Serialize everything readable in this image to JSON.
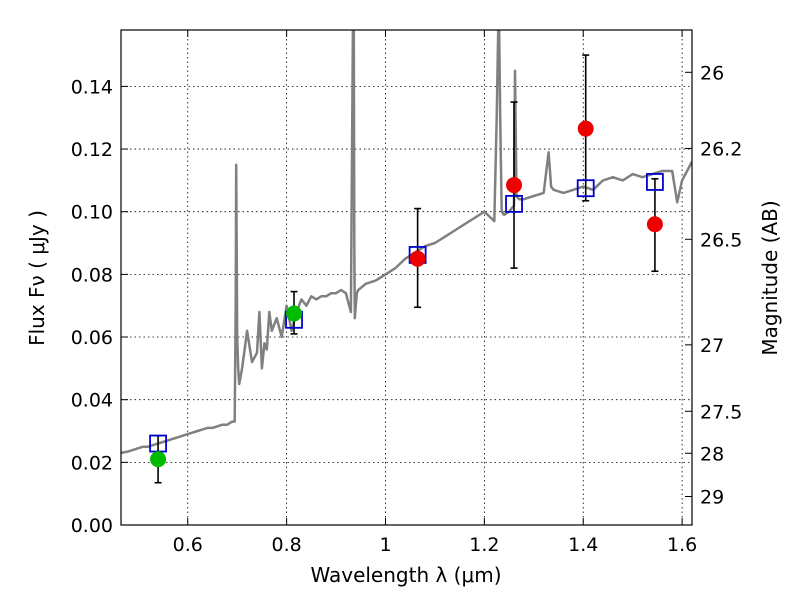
{
  "chart_data": {
    "type": "scatter",
    "xlabel": "Wavelength  λ (μm)",
    "ylabel": "Flux  Fν  ( μJy )",
    "ylabel_right": "Magnitude (AB)",
    "xlim": [
      0.465,
      1.62
    ],
    "ylim": [
      0.0,
      0.158
    ],
    "xticks": [
      0.6,
      0.8,
      1.0,
      1.2,
      1.4,
      1.6
    ],
    "xtick_labels": [
      "0.6",
      "0.8",
      "1",
      "1.2",
      "1.4",
      "1.6"
    ],
    "yticks": [
      0.0,
      0.02,
      0.04,
      0.06,
      0.08,
      0.1,
      0.12,
      0.14
    ],
    "ytick_labels": [
      "0.00",
      "0.02",
      "0.04",
      "0.06",
      "0.08",
      "0.10",
      "0.12",
      "0.14"
    ],
    "right_ticks": [
      {
        "label": "26",
        "flux": 0.1445
      },
      {
        "label": "26.2",
        "flux": 0.1202
      },
      {
        "label": "26.5",
        "flux": 0.0912
      },
      {
        "label": "27",
        "flux": 0.0575
      },
      {
        "label": "27.5",
        "flux": 0.0363
      },
      {
        "label": "28",
        "flux": 0.0229
      },
      {
        "label": "29",
        "flux": 0.0091
      }
    ],
    "grid": true,
    "series": [
      {
        "name": "model spectrum",
        "kind": "line",
        "color": "#808080",
        "x": [
          0.465,
          0.48,
          0.49,
          0.5,
          0.51,
          0.52,
          0.53,
          0.54,
          0.55,
          0.56,
          0.57,
          0.58,
          0.59,
          0.6,
          0.61,
          0.62,
          0.63,
          0.64,
          0.65,
          0.66,
          0.67,
          0.68,
          0.69,
          0.695,
          0.697,
          0.698,
          0.7,
          0.702,
          0.704,
          0.71,
          0.72,
          0.73,
          0.74,
          0.745,
          0.75,
          0.755,
          0.76,
          0.765,
          0.77,
          0.78,
          0.79,
          0.8,
          0.81,
          0.82,
          0.83,
          0.84,
          0.85,
          0.86,
          0.87,
          0.88,
          0.89,
          0.9,
          0.91,
          0.92,
          0.93,
          0.934,
          0.936,
          0.937,
          0.938,
          0.94,
          0.942,
          0.945,
          0.96,
          0.98,
          1.0,
          1.02,
          1.04,
          1.06,
          1.08,
          1.1,
          1.12,
          1.14,
          1.16,
          1.18,
          1.2,
          1.22,
          1.225,
          1.228,
          1.23,
          1.232,
          1.235,
          1.24,
          1.25,
          1.26,
          1.262,
          1.265,
          1.27,
          1.28,
          1.3,
          1.32,
          1.33,
          1.335,
          1.34,
          1.36,
          1.38,
          1.4,
          1.42,
          1.44,
          1.46,
          1.48,
          1.5,
          1.52,
          1.54,
          1.56,
          1.58,
          1.59,
          1.6,
          1.61,
          1.62
        ],
        "y": [
          0.023,
          0.0235,
          0.024,
          0.0245,
          0.025,
          0.025,
          0.0255,
          0.026,
          0.0265,
          0.027,
          0.0275,
          0.028,
          0.0285,
          0.029,
          0.0295,
          0.03,
          0.0305,
          0.031,
          0.031,
          0.0315,
          0.032,
          0.032,
          0.033,
          0.033,
          0.07,
          0.115,
          0.06,
          0.05,
          0.045,
          0.05,
          0.062,
          0.052,
          0.055,
          0.068,
          0.05,
          0.058,
          0.056,
          0.068,
          0.062,
          0.066,
          0.06,
          0.07,
          0.062,
          0.068,
          0.072,
          0.07,
          0.073,
          0.072,
          0.073,
          0.073,
          0.074,
          0.074,
          0.075,
          0.074,
          0.068,
          0.158,
          0.158,
          0.09,
          0.066,
          0.07,
          0.074,
          0.075,
          0.077,
          0.078,
          0.08,
          0.082,
          0.085,
          0.087,
          0.089,
          0.09,
          0.092,
          0.094,
          0.096,
          0.098,
          0.1,
          0.097,
          0.13,
          0.158,
          0.158,
          0.13,
          0.1,
          0.099,
          0.1,
          0.102,
          0.145,
          0.105,
          0.104,
          0.104,
          0.105,
          0.106,
          0.119,
          0.108,
          0.107,
          0.106,
          0.107,
          0.108,
          0.107,
          0.11,
          0.111,
          0.11,
          0.112,
          0.111,
          0.112,
          0.113,
          0.113,
          0.103,
          0.11,
          0.113,
          0.116
        ]
      },
      {
        "name": "model photometry",
        "kind": "open-square",
        "color": "#0000cc",
        "x": [
          0.54,
          0.815,
          1.065,
          1.26,
          1.405,
          1.545
        ],
        "y": [
          0.026,
          0.0655,
          0.0862,
          0.1025,
          0.1075,
          0.1095
        ]
      },
      {
        "name": "observed (green)",
        "kind": "filled-circle",
        "color": "#00bb00",
        "x": [
          0.54,
          0.815
        ],
        "y": [
          0.021,
          0.0675
        ]
      },
      {
        "name": "observed (red)",
        "kind": "filled-circle",
        "color": "#ee0000",
        "x": [
          1.065,
          1.26,
          1.405,
          1.545
        ],
        "y": [
          0.085,
          0.1085,
          0.1265,
          0.096
        ]
      },
      {
        "name": "error bars",
        "kind": "errorbar",
        "color": "#000000",
        "x": [
          0.54,
          0.815,
          1.065,
          1.26,
          1.405,
          1.545
        ],
        "ylow": [
          0.0135,
          0.061,
          0.0695,
          0.082,
          0.1035,
          0.081
        ],
        "yhigh": [
          0.0285,
          0.0745,
          0.101,
          0.135,
          0.15,
          0.1105
        ]
      }
    ]
  }
}
